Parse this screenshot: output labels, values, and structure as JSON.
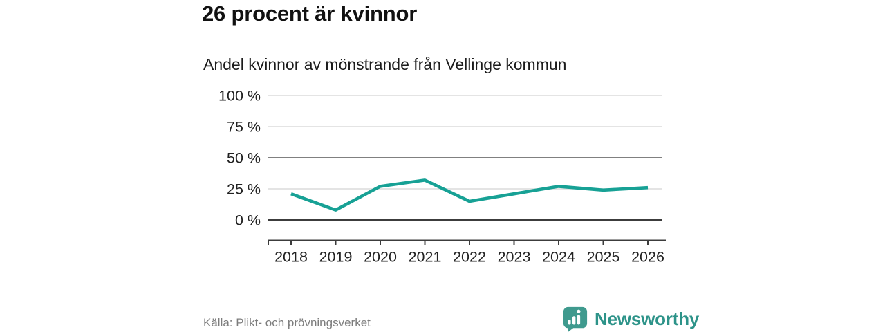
{
  "header": {
    "title": "26 procent är kvinnor",
    "subtitle": "Andel kvinnor av mönstrande från Vellinge kommun"
  },
  "chart_data": {
    "type": "line",
    "title": "26 procent är kvinnor",
    "subtitle": "Andel kvinnor av mönstrande från Vellinge kommun",
    "categories": [
      "2018",
      "2019",
      "2020",
      "2021",
      "2022",
      "2023",
      "2024",
      "2025",
      "2026"
    ],
    "series": [
      {
        "name": "Andel kvinnor av mönstrande",
        "values": [
          21,
          8,
          27,
          32,
          15,
          21,
          27,
          24,
          26
        ]
      }
    ],
    "unit": "%",
    "xlabel": "",
    "ylabel": "",
    "ylim": [
      0,
      100
    ],
    "yticks": [
      0,
      25,
      50,
      75,
      100
    ],
    "ytick_labels": [
      "0 %",
      "25 %",
      "50 %",
      "75 %",
      "100 %"
    ],
    "grid": true,
    "legend_position": "none",
    "colors": {
      "line": "#17A195",
      "grid_light": "#DCDCDC",
      "grid_mid": "#808080",
      "axis_strong": "#3C3C3C",
      "label": "#222222"
    }
  },
  "footer": {
    "source": "Källa: Plikt- och prövningsverket",
    "brand": "Newsworthy",
    "brand_color": "#2d9389",
    "brand_icon": "newsworthy-speech-bubble-barchart"
  }
}
